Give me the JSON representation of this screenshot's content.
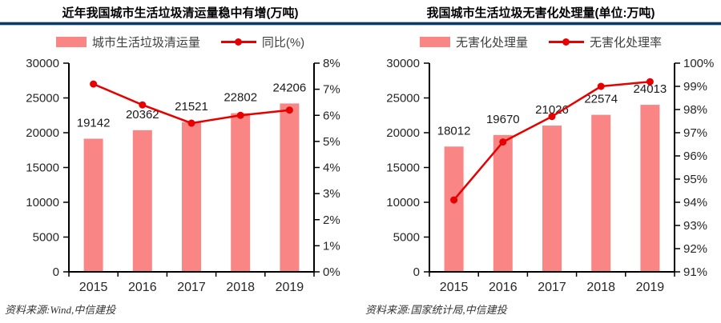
{
  "colors": {
    "bar": "#F98585",
    "line": "#E60000",
    "axis": "#000000",
    "tick_text": "#262626",
    "value_text": "#1A1A1A",
    "legend_text": "#3F3F3F",
    "divider": "#17365D",
    "divider_edge": "#9DC3E6",
    "background": "#FFFFFF"
  },
  "chart_data": [
    {
      "type": "bar",
      "title": "近年我国城市生活垃圾清运量稳中有增(万吨)",
      "categories": [
        "2015",
        "2016",
        "2017",
        "2018",
        "2019"
      ],
      "series": [
        {
          "name": "城市生活垃圾清运量",
          "type": "bar",
          "axis": "left",
          "values": [
            19142,
            20362,
            21521,
            22802,
            24206
          ]
        },
        {
          "name": "同比(%)",
          "type": "line",
          "axis": "right",
          "values": [
            7.2,
            6.4,
            5.7,
            6.0,
            6.2
          ]
        }
      ],
      "left_axis": {
        "min": 0,
        "max": 30000,
        "step": 5000,
        "suffix": ""
      },
      "right_axis": {
        "min": 0,
        "max": 8,
        "step": 1,
        "suffix": "%"
      },
      "grid": false,
      "legend_position": "top",
      "bar_labels": true,
      "source": "资料来源:Wind,中信建投"
    },
    {
      "type": "bar",
      "title": "我国城市生活垃圾无害化处理量(单位:万吨)",
      "categories": [
        "2015",
        "2016",
        "2017",
        "2018",
        "2019"
      ],
      "series": [
        {
          "name": "无害化处理量",
          "type": "bar",
          "axis": "left",
          "values": [
            18012,
            19670,
            21026,
            22574,
            24013
          ]
        },
        {
          "name": "无害化处理率",
          "type": "line",
          "axis": "right",
          "values": [
            94.1,
            96.6,
            97.7,
            99.0,
            99.2
          ]
        }
      ],
      "left_axis": {
        "min": 0,
        "max": 30000,
        "step": 5000,
        "suffix": ""
      },
      "right_axis": {
        "min": 91,
        "max": 100,
        "step": 1,
        "suffix": "%"
      },
      "grid": false,
      "legend_position": "top",
      "bar_labels": true,
      "source": "资料来源:国家统计局,中信建投"
    }
  ]
}
